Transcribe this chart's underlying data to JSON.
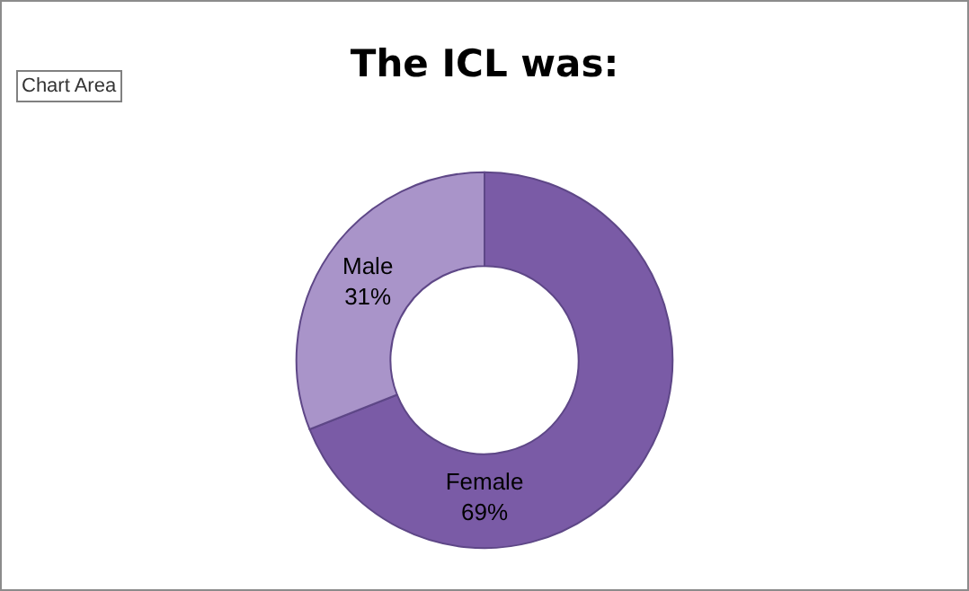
{
  "chart_data": {
    "type": "donut",
    "title": "The ICL was:",
    "categories": [
      "Female",
      "Male"
    ],
    "values": [
      69,
      31
    ],
    "value_labels": [
      "69%",
      "31%"
    ],
    "colors": [
      "#7a5ba6",
      "#a994c9"
    ],
    "annotations": [
      "Chart Area"
    ]
  }
}
